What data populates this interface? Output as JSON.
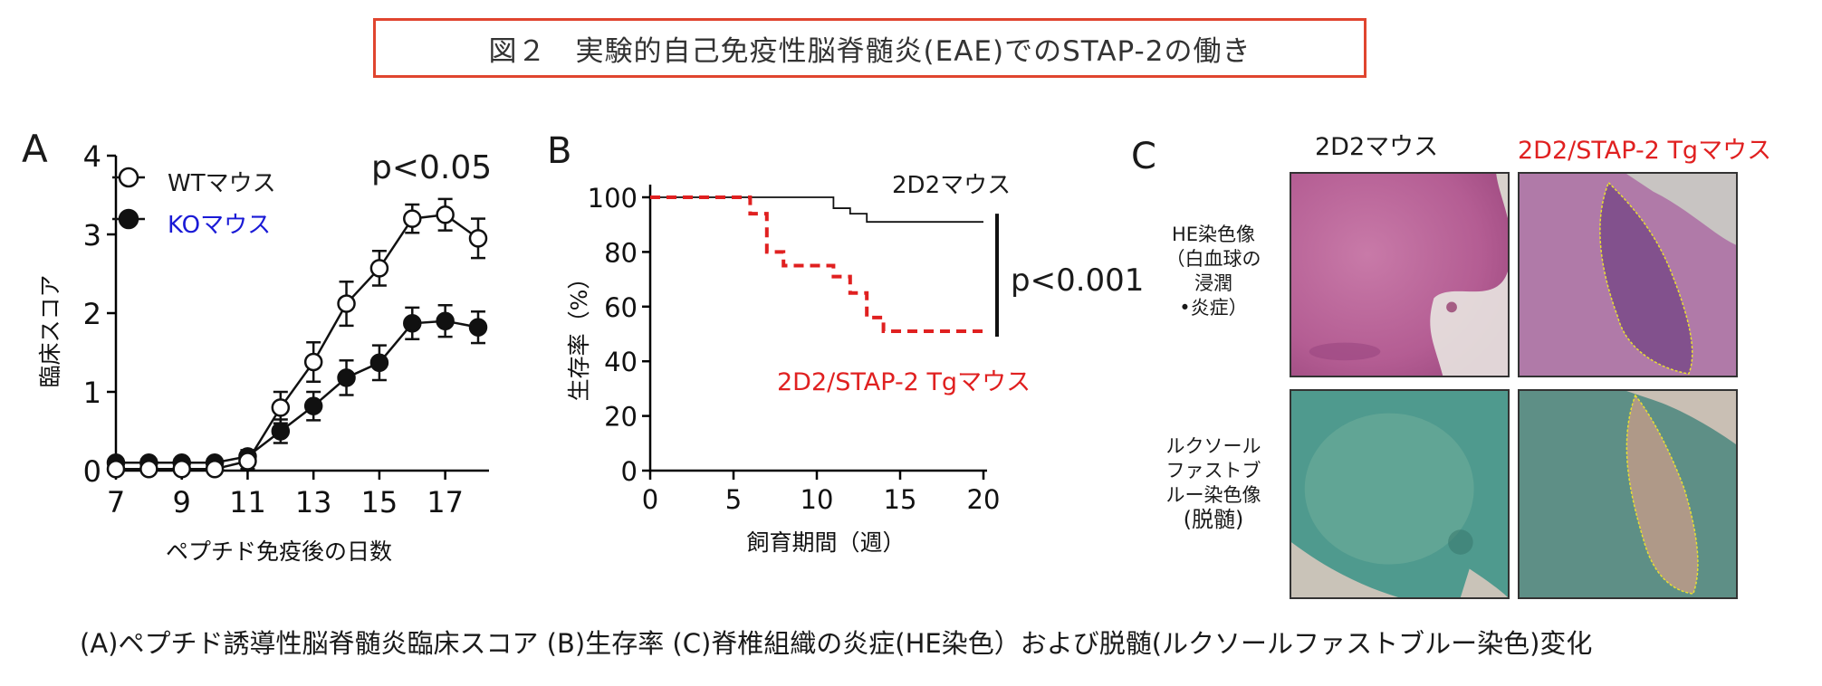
{
  "title": "図２　実験的自己免疫性脳脊髄炎(EAE)でのSTAP-2の働き",
  "caption": "(A)ペプチド誘導性脳脊髄炎臨床スコア (B)生存率 (C)脊椎組織の炎症(HE染色）および脱髄(ルクソールファストブルー染色)変化",
  "panel_a": {
    "letter": "A",
    "pvalue": "p<0.05",
    "legend_wt": "WTマウス",
    "legend_ko": "KOマウス",
    "ko_color": "#1a1ad6"
  },
  "panel_b": {
    "letter": "B",
    "label_2d2": "2D2マウス",
    "label_tg": "2D2/STAP-2 Tgマウス",
    "pvalue": "p<0.001",
    "tg_color": "#e02020"
  },
  "panel_c": {
    "letter": "C",
    "col1": "2D2マウス",
    "col2": "2D2/STAP-2 Tgマウス",
    "col2_color": "#e02020",
    "row1": [
      "HE染色像",
      "（白血球の",
      "浸潤",
      "•炎症）"
    ],
    "row2": [
      "ルクソール",
      "ファストブ",
      "ルー染色像",
      "(脱髄)"
    ]
  },
  "chart_data": [
    {
      "type": "line",
      "xlabel": "ペプチド免疫後の日数",
      "ylabel": "臨床スコア",
      "xlim": [
        7,
        18
      ],
      "ylim": [
        0,
        4
      ],
      "xticks": [
        "7",
        "9",
        "11",
        "13",
        "15",
        "17"
      ],
      "yticks": [
        "0",
        "1",
        "2",
        "3",
        "4"
      ],
      "x": [
        7,
        8,
        9,
        10,
        11,
        12,
        13,
        14,
        15,
        16,
        17,
        18
      ],
      "series": [
        {
          "name": "WTマウス",
          "marker": "open-circle",
          "values": [
            0.02,
            0.02,
            0.02,
            0.02,
            0.12,
            0.8,
            1.38,
            2.12,
            2.57,
            3.2,
            3.25,
            2.95
          ],
          "error": [
            0.05,
            0.05,
            0.05,
            0.05,
            0.1,
            0.2,
            0.25,
            0.28,
            0.22,
            0.18,
            0.2,
            0.25
          ]
        },
        {
          "name": "KOマウス",
          "marker": "filled-circle",
          "values": [
            0.1,
            0.1,
            0.1,
            0.1,
            0.18,
            0.5,
            0.82,
            1.18,
            1.37,
            1.87,
            1.9,
            1.82
          ],
          "error": [
            0.05,
            0.05,
            0.05,
            0.05,
            0.08,
            0.15,
            0.18,
            0.22,
            0.22,
            0.2,
            0.2,
            0.2
          ]
        }
      ],
      "legend": "top-left"
    },
    {
      "type": "line",
      "step": true,
      "xlabel": "飼育期間（週）",
      "ylabel": "生存率（%）",
      "xlim": [
        0,
        20
      ],
      "ylim": [
        0,
        100
      ],
      "xticks": [
        "0",
        "5",
        "10",
        "15",
        "20"
      ],
      "yticks": [
        "0",
        "20",
        "40",
        "60",
        "80",
        "100"
      ],
      "series": [
        {
          "name": "2D2マウス",
          "style": "solid",
          "x": [
            0,
            11,
            12,
            13,
            14,
            20
          ],
          "values": [
            100,
            96,
            94,
            91,
            91,
            91
          ]
        },
        {
          "name": "2D2/STAP-2 Tgマウス",
          "style": "dashed",
          "x": [
            0,
            6,
            7,
            8,
            11,
            12,
            13,
            14,
            20
          ],
          "values": [
            100,
            94,
            80,
            75,
            71,
            65,
            56,
            51,
            51
          ]
        }
      ]
    }
  ]
}
